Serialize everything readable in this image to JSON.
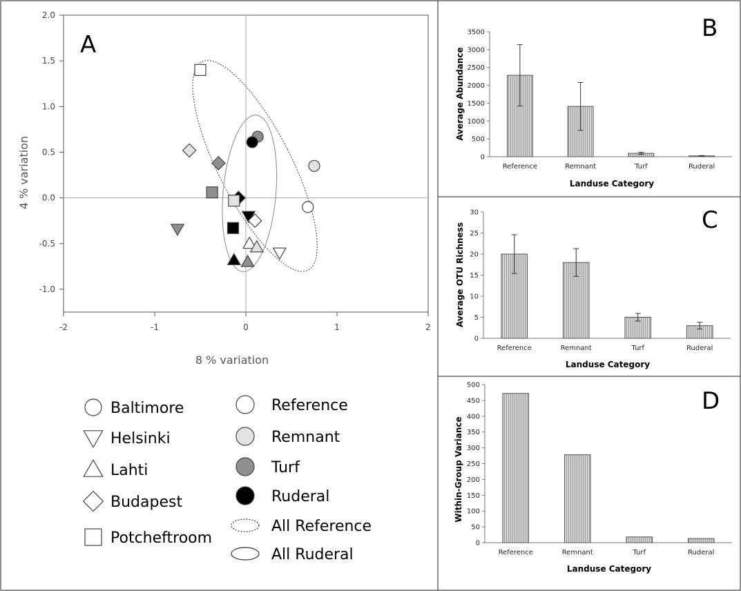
{
  "colors": {
    "reference": "#ffffff",
    "remnant": "#e3e3e3",
    "turf": "#8f8f8f",
    "ruderal": "#000000",
    "bar_fill": "#c8c8c8"
  },
  "panel_a": {
    "letter": "A",
    "legend": {
      "cities": [
        {
          "label": "Baltimore",
          "icon": "circle-icon"
        },
        {
          "label": "Helsinki",
          "icon": "triangle-down-icon"
        },
        {
          "label": "Lahti",
          "icon": "triangle-up-icon"
        },
        {
          "label": "Budapest",
          "icon": "diamond-icon"
        },
        {
          "label": "Potcheftroom",
          "icon": "square-icon"
        }
      ],
      "landuse": [
        {
          "label": "Reference",
          "color_key": "reference"
        },
        {
          "label": "Remnant",
          "color_key": "remnant"
        },
        {
          "label": "Turf",
          "color_key": "turf"
        },
        {
          "label": "Ruderal",
          "color_key": "ruderal"
        }
      ],
      "ellipses": [
        {
          "label": "All Reference",
          "style": "dotted"
        },
        {
          "label": "All Ruderal",
          "style": "solid"
        }
      ]
    }
  },
  "chart_data": [
    {
      "type": "scatter",
      "panel": "A",
      "xlabel": "8 % variation",
      "ylabel": "4 % variation",
      "xlim": [
        -2,
        2
      ],
      "ylim": [
        -1.25,
        2.0
      ],
      "xticks": [
        "-2",
        "-1",
        "0",
        "1",
        "2"
      ],
      "yticks": [
        "-1.0",
        "-0.5",
        "0.0",
        "0.5",
        "1.0",
        "1.5",
        "2.0"
      ],
      "points": [
        {
          "x": -0.5,
          "y": 1.4,
          "shape": "square",
          "landuse": "reference"
        },
        {
          "x": -0.62,
          "y": 0.52,
          "shape": "diamond",
          "landuse": "remnant"
        },
        {
          "x": -0.3,
          "y": 0.38,
          "shape": "diamond",
          "landuse": "turf"
        },
        {
          "x": 0.13,
          "y": 0.67,
          "shape": "circle",
          "landuse": "turf"
        },
        {
          "x": 0.07,
          "y": 0.61,
          "shape": "circle",
          "landuse": "ruderal"
        },
        {
          "x": 0.75,
          "y": 0.35,
          "shape": "circle",
          "landuse": "remnant"
        },
        {
          "x": 0.68,
          "y": -0.1,
          "shape": "circle",
          "landuse": "reference"
        },
        {
          "x": -0.37,
          "y": 0.06,
          "shape": "square",
          "landuse": "turf"
        },
        {
          "x": -0.08,
          "y": 0.0,
          "shape": "diamond",
          "landuse": "ruderal"
        },
        {
          "x": -0.13,
          "y": -0.03,
          "shape": "square",
          "landuse": "remnant"
        },
        {
          "x": -0.75,
          "y": -0.34,
          "shape": "triangle-down",
          "landuse": "turf"
        },
        {
          "x": 0.03,
          "y": -0.2,
          "shape": "triangle-down",
          "landuse": "ruderal"
        },
        {
          "x": 0.1,
          "y": -0.25,
          "shape": "diamond",
          "landuse": "reference"
        },
        {
          "x": -0.14,
          "y": -0.33,
          "shape": "square",
          "landuse": "ruderal"
        },
        {
          "x": 0.04,
          "y": -0.5,
          "shape": "triangle-up",
          "landuse": "reference"
        },
        {
          "x": 0.12,
          "y": -0.54,
          "shape": "triangle-up",
          "landuse": "remnant"
        },
        {
          "x": 0.37,
          "y": -0.6,
          "shape": "triangle-down",
          "landuse": "reference"
        },
        {
          "x": -0.13,
          "y": -0.68,
          "shape": "triangle-up",
          "landuse": "ruderal"
        },
        {
          "x": 0.02,
          "y": -0.7,
          "shape": "triangle-up",
          "landuse": "turf"
        }
      ],
      "ellipses": [
        {
          "name": "All Reference",
          "cx": 0.1,
          "cy": 0.35,
          "rx": 0.4,
          "ry": 1.28,
          "rotation_deg": -27,
          "style": "dotted"
        },
        {
          "name": "All Ruderal",
          "cx": 0.04,
          "cy": 0.05,
          "rx": 0.29,
          "ry": 0.86,
          "rotation_deg": 5,
          "style": "solid"
        }
      ]
    },
    {
      "type": "bar",
      "panel": "B",
      "letter": "B",
      "categories": [
        "Reference",
        "Remnant",
        "Turf",
        "Ruderal"
      ],
      "values": [
        2280,
        1410,
        95,
        25
      ],
      "errors": [
        860,
        670,
        30,
        8
      ],
      "ylim": [
        0,
        3500
      ],
      "yticks": [
        "0",
        "500",
        "1000",
        "1500",
        "2000",
        "2500",
        "3000",
        "3500"
      ],
      "xlabel": "Landuse Category",
      "ylabel": "Average Abundance"
    },
    {
      "type": "bar",
      "panel": "C",
      "letter": "C",
      "categories": [
        "Reference",
        "Remnant",
        "Turf",
        "Ruderal"
      ],
      "values": [
        20,
        18,
        5,
        3
      ],
      "errors": [
        4.6,
        3.3,
        0.9,
        0.8
      ],
      "ylim": [
        0,
        30
      ],
      "yticks": [
        "0",
        "5",
        "10",
        "15",
        "20",
        "25",
        "30"
      ],
      "xlabel": "Landuse Category",
      "ylabel": "Average OTU Richness"
    },
    {
      "type": "bar",
      "panel": "D",
      "letter": "D",
      "categories": [
        "Reference",
        "Remnant",
        "Turf",
        "Ruderal"
      ],
      "values": [
        472,
        278,
        18,
        13
      ],
      "ylim": [
        0,
        500
      ],
      "yticks": [
        "0",
        "50",
        "100",
        "150",
        "200",
        "250",
        "300",
        "350",
        "400",
        "450",
        "500"
      ],
      "xlabel": "Landuse Category",
      "ylabel": "Within-Group Variance"
    }
  ]
}
